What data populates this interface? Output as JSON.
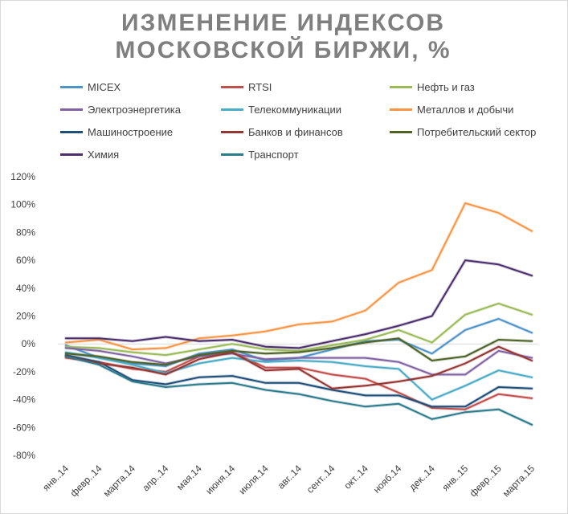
{
  "title_line1": "ИЗМЕНЕНИЕ ИНДЕКСОВ",
  "title_line2": "МОСКОВСКОЙ БИРЖИ, %",
  "chart_data": {
    "type": "line",
    "title": "ИЗМЕНЕНИЕ ИНДЕКСОВ МОСКОВСКОЙ БИРЖИ, %",
    "x": [
      "янв..14",
      "февр..14",
      "марта.14",
      "апр..14",
      "мая.14",
      "июня.14",
      "июля.14",
      "авг..14",
      "сент..14",
      "окт..14",
      "нояб.14",
      "дек..14",
      "янв..15",
      "февр..15",
      "марта.15"
    ],
    "ylim": [
      -80,
      120
    ],
    "yticks": [
      -80,
      -60,
      -40,
      -20,
      0,
      20,
      40,
      60,
      80,
      100,
      120
    ],
    "ytick_labels": [
      "-80%",
      "-60%",
      "-40%",
      "-20%",
      "0%",
      "20%",
      "40%",
      "60%",
      "80%",
      "100%",
      "120%"
    ],
    "grid": false,
    "legend_position": "top",
    "series": [
      {
        "name": "MICEX",
        "color": "#4f93c7",
        "values": [
          -1,
          -10,
          -14,
          -16,
          -7,
          -4,
          -12,
          -10,
          -4,
          2,
          3,
          -7,
          10,
          18,
          8
        ]
      },
      {
        "name": "RTSI",
        "color": "#c0504d",
        "values": [
          -10,
          -13,
          -18,
          -20,
          -9,
          -6,
          -17,
          -17,
          -22,
          -25,
          -35,
          -46,
          -47,
          -36,
          -39
        ]
      },
      {
        "name": "Нефть и газ",
        "color": "#9bbb59",
        "values": [
          -2,
          -3,
          -6,
          -8,
          -4,
          0,
          -4,
          -5,
          -1,
          3,
          10,
          1,
          21,
          29,
          21
        ]
      },
      {
        "name": "Электроэнергетика",
        "color": "#8064a2",
        "values": [
          -3,
          -5,
          -9,
          -14,
          -9,
          -7,
          -11,
          -10,
          -10,
          -10,
          -13,
          -22,
          -22,
          -5,
          -10
        ]
      },
      {
        "name": "Телекоммуникации",
        "color": "#4bacc6",
        "values": [
          -6,
          -10,
          -15,
          -21,
          -14,
          -10,
          -13,
          -12,
          -13,
          -16,
          -18,
          -40,
          -30,
          -19,
          -24
        ]
      },
      {
        "name": "Металлов и добычи",
        "color": "#f79646",
        "values": [
          1,
          3,
          -4,
          -3,
          4,
          6,
          9,
          14,
          16,
          24,
          44,
          53,
          101,
          94,
          81
        ]
      },
      {
        "name": "Машиностроение",
        "color": "#1f4e79",
        "values": [
          -8,
          -13,
          -26,
          -29,
          -24,
          -23,
          -28,
          -28,
          -33,
          -37,
          -37,
          -45,
          -45,
          -31,
          -32
        ]
      },
      {
        "name": "Банков и финансов",
        "color": "#943634",
        "values": [
          -9,
          -14,
          -17,
          -22,
          -11,
          -6,
          -19,
          -18,
          -32,
          -30,
          -27,
          -23,
          -14,
          -2,
          -12
        ]
      },
      {
        "name": "Потребительский сектор",
        "color": "#4f6228",
        "values": [
          -7,
          -9,
          -13,
          -15,
          -8,
          -5,
          -7,
          -6,
          -3,
          1,
          4,
          -12,
          -9,
          3,
          2
        ]
      },
      {
        "name": "Химия",
        "color": "#4b2f6b",
        "values": [
          4,
          4,
          2,
          5,
          2,
          3,
          -2,
          -3,
          2,
          7,
          13,
          20,
          60,
          57,
          49
        ]
      },
      {
        "name": "Транспорт",
        "color": "#2e7b8c",
        "values": [
          -9,
          -15,
          -27,
          -31,
          -29,
          -28,
          -33,
          -36,
          -41,
          -45,
          -43,
          -54,
          -49,
          -47,
          -58
        ]
      }
    ]
  }
}
